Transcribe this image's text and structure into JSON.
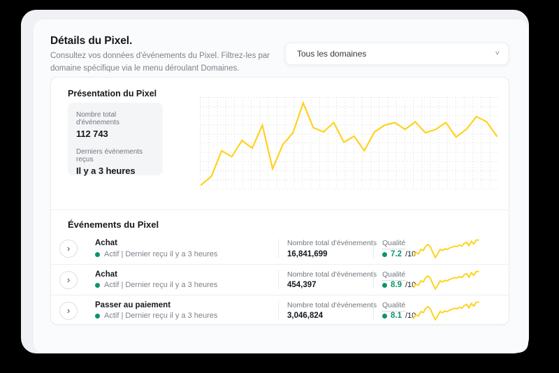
{
  "header": {
    "title": "Détails du Pixel.",
    "subtitle": "Consultez vos données d'événements du Pixel. Filtrez-les par domaine spécifique via le menu déroulant Domaines.",
    "domain_dropdown": {
      "value": "Tous les domaines",
      "chevron_icon": "˅"
    }
  },
  "presentation": {
    "title": "Présentation du Pixel",
    "stats": [
      {
        "label": "Nombre total d'événements",
        "value": "112 743"
      },
      {
        "label": "Derniers événements reçus",
        "value": "Il y a 3 heures"
      }
    ]
  },
  "chart_data": {
    "type": "line",
    "title": "Présentation du Pixel — activité des événements",
    "xlabel": "",
    "ylabel": "",
    "x": "30 intervalles de temps non étiquetés",
    "series": [
      {
        "name": "Événements",
        "values": [
          2,
          12,
          42,
          35,
          54,
          45,
          72,
          21,
          49,
          63,
          98,
          69,
          64,
          75,
          52,
          59,
          42,
          64,
          72,
          75,
          67,
          76,
          63,
          67,
          75,
          58,
          67,
          82,
          76,
          59
        ]
      }
    ],
    "ylim": [
      0,
      100
    ],
    "grid": "dotted",
    "axes_visible": false,
    "legend": "none",
    "line_color": "#FFD21E"
  },
  "events": {
    "title": "Événements du Pixel",
    "total_label": "Nombre total d'événements",
    "quality_label": "Qualité",
    "quality_denominator": "/10",
    "chevron_icon": "›",
    "rows": [
      {
        "name": "Achat",
        "status": "Actif | Dernier reçu il y a 3 heures",
        "total": "16,841,699",
        "quality": "7.2"
      },
      {
        "name": "Achat",
        "status": "Actif | Dernier reçu il y a 3 heures",
        "total": "454,397",
        "quality": "8.9"
      },
      {
        "name": "Passer au paiement",
        "status": "Actif | Dernier reçu il y a 3 heures",
        "total": "3,046,824",
        "quality": "8.1"
      }
    ],
    "sparkline": {
      "type": "line",
      "line_color": "#FFD21E",
      "values": [
        15,
        30,
        25,
        45,
        40,
        60,
        68,
        55,
        30,
        8,
        25,
        45,
        40,
        48,
        45,
        52,
        55,
        60,
        58,
        65,
        60,
        72,
        78,
        62,
        82,
        70,
        88,
        88
      ]
    }
  },
  "colors": {
    "accent_yellow": "#FFD21E",
    "status_green": "#0E9466",
    "panel_bg": "#fafbfc",
    "page_bg": "#eff1f4",
    "card_border": "#e9ebed"
  }
}
